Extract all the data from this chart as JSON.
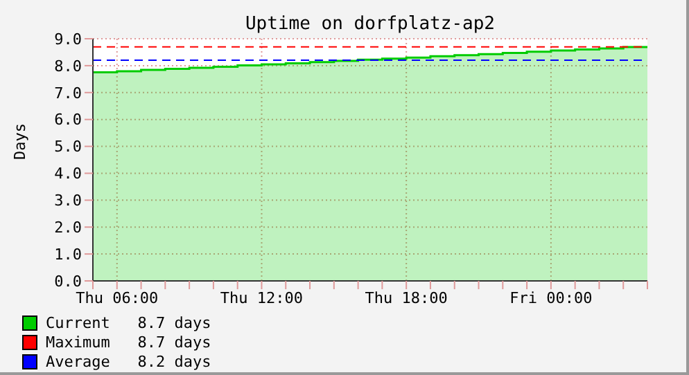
{
  "chart_data": {
    "type": "step",
    "title": "Uptime on dorfplatz-ap2",
    "ylabel": "Days",
    "categories": [
      null,
      "Thu 06:00",
      null,
      null,
      null,
      null,
      null,
      "Thu 12:00",
      null,
      null,
      null,
      null,
      null,
      "Thu 18:00",
      null,
      null,
      null,
      null,
      null,
      "Fri 00:00",
      null,
      null,
      null,
      null
    ],
    "series": [
      {
        "name": "Current   8.7 days",
        "color": "#00cc00",
        "values": [
          7.75,
          7.79,
          7.84,
          7.88,
          7.92,
          7.96,
          8.01,
          8.05,
          8.09,
          8.13,
          8.18,
          8.22,
          8.26,
          8.3,
          8.35,
          8.39,
          8.43,
          8.47,
          8.52,
          8.56,
          8.6,
          8.64,
          8.69,
          8.73
        ]
      }
    ],
    "ylim": [
      0,
      9
    ],
    "yticks": [
      {
        "value": 0,
        "label": "0.0"
      },
      {
        "value": 1,
        "label": "1.0"
      },
      {
        "value": 2,
        "label": "2.0"
      },
      {
        "value": 3,
        "label": "3.0"
      },
      {
        "value": 4,
        "label": "4.0"
      },
      {
        "value": 5,
        "label": "5.0"
      },
      {
        "value": 6,
        "label": "6.0"
      },
      {
        "value": 7,
        "label": "7.0"
      },
      {
        "value": 8,
        "label": "8.0"
      },
      {
        "value": 9,
        "label": "9.0"
      }
    ],
    "ref_lines": [
      {
        "axis": "y",
        "value": 8.7,
        "label": "Maximum   8.7 days",
        "color": "#ff0000",
        "line_style": "dashed"
      },
      {
        "axis": "y",
        "value": 8.2,
        "label": "Average   8.2 days",
        "color": "#0000ff",
        "line_style": "dashed"
      }
    ],
    "grid": true,
    "legend": "bottom left"
  }
}
